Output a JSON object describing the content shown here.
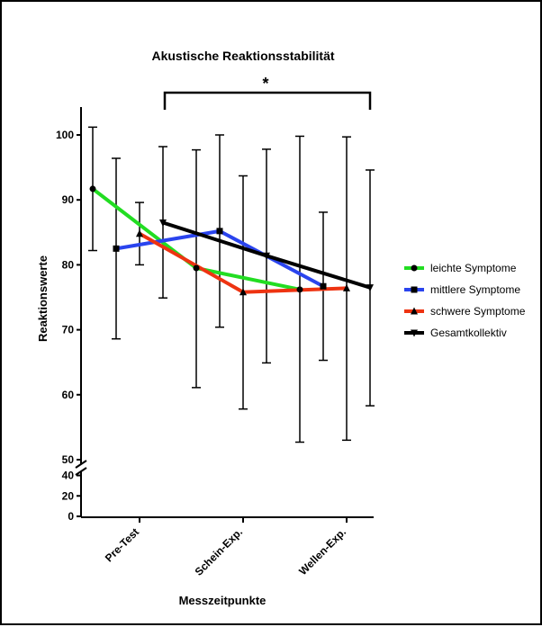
{
  "chart_data": {
    "type": "line",
    "title": "Akustische Reaktionsstabilität",
    "xlabel": "Messzeitpunkte",
    "ylabel": "Reaktionswerte",
    "categories": [
      "Pre-Test",
      "Schein-Exp.",
      "Wellen-Exp."
    ],
    "y_ticks_upper": [
      "100",
      "90",
      "80",
      "70",
      "60",
      "50"
    ],
    "y_ticks_lower": [
      "40",
      "20",
      "0"
    ],
    "ylim_upper": [
      50,
      105
    ],
    "ylim_lower": [
      0,
      40
    ],
    "significance_label": "*",
    "legend_position": "right",
    "series": [
      {
        "name": "leichte Symptome",
        "color": "#22dd22",
        "marker": "circle",
        "x": [
          "Pre-Test",
          "Schein-Exp.",
          "Wellen-Exp."
        ],
        "values": [
          91.7,
          79.5,
          76.2
        ],
        "error_low": [
          82.2,
          61.1,
          52.7
        ],
        "error_high": [
          101.2,
          97.7,
          99.8
        ]
      },
      {
        "name": "mittlere Symptome",
        "color": "#2a44ee",
        "marker": "square",
        "x": [
          "Pre-Test",
          "Schein-Exp.",
          "Wellen-Exp."
        ],
        "values": [
          82.5,
          85.2,
          76.7
        ],
        "error_low": [
          68.6,
          70.4,
          65.3
        ],
        "error_high": [
          96.4,
          100.0,
          88.1
        ]
      },
      {
        "name": "schwere Symptome",
        "color": "#ee3311",
        "marker": "triangle",
        "x": [
          "Pre-Test",
          "Schein-Exp.",
          "Wellen-Exp."
        ],
        "values": [
          84.8,
          75.8,
          76.4
        ],
        "error_low": [
          80.0,
          57.8,
          53.0
        ],
        "error_high": [
          89.6,
          93.7,
          99.7
        ]
      },
      {
        "name": "Gesamtkollektiv",
        "color": "#000000",
        "marker": "triangle-down",
        "x": [
          "Pre-Test",
          "Schein-Exp.",
          "Wellen-Exp."
        ],
        "values": [
          86.5,
          81.4,
          76.5
        ],
        "error_low": [
          74.9,
          64.9,
          58.3
        ],
        "error_high": [
          98.2,
          97.8,
          94.6
        ]
      }
    ]
  }
}
